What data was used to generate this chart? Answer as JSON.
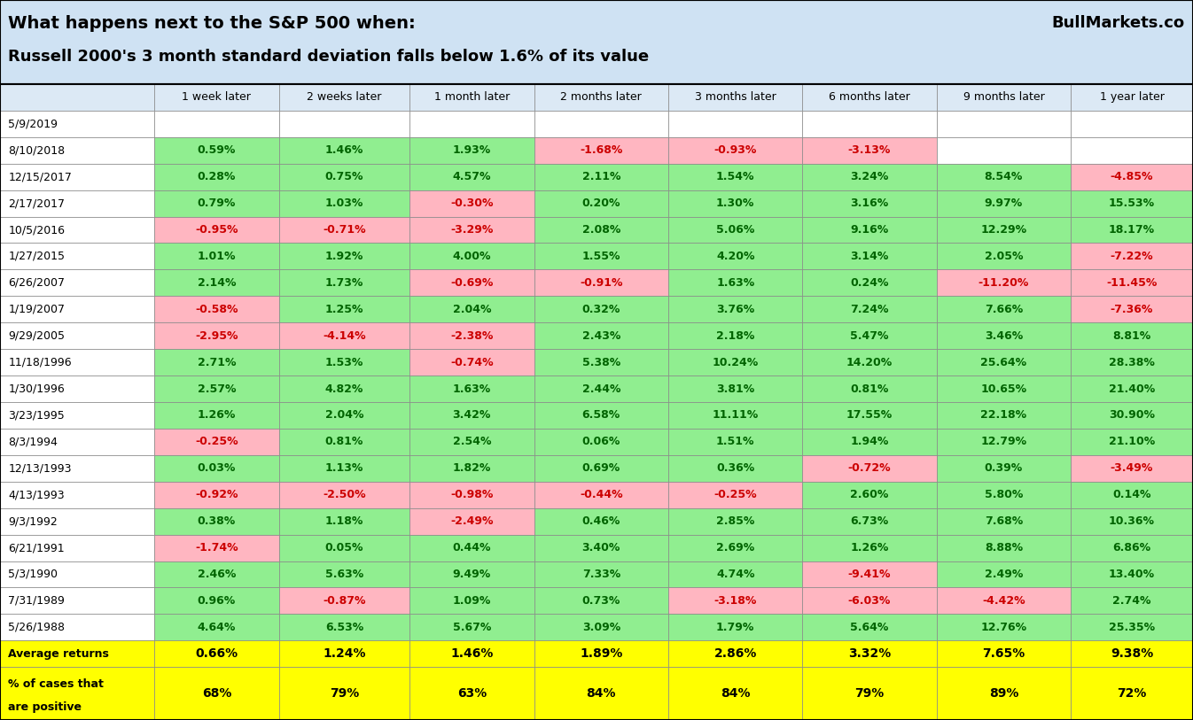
{
  "title_line1": "What happens next to the S&P 500 when:",
  "title_line2": "Russell 2000's 3 month standard deviation falls below 1.6% of its value",
  "watermark": "BullMarkets.co",
  "col_headers": [
    "1 week later",
    "2 weeks later",
    "1 month later",
    "2 months later",
    "3 months later",
    "6 months later",
    "9 months later",
    "1 year later"
  ],
  "rows": [
    {
      "date": "5/9/2019",
      "values": [
        null,
        null,
        null,
        null,
        null,
        null,
        null,
        null
      ]
    },
    {
      "date": "8/10/2018",
      "values": [
        0.59,
        1.46,
        1.93,
        -1.68,
        -0.93,
        -3.13,
        null,
        null
      ]
    },
    {
      "date": "12/15/2017",
      "values": [
        0.28,
        0.75,
        4.57,
        2.11,
        1.54,
        3.24,
        8.54,
        -4.85
      ]
    },
    {
      "date": "2/17/2017",
      "values": [
        0.79,
        1.03,
        -0.3,
        0.2,
        1.3,
        3.16,
        9.97,
        15.53
      ]
    },
    {
      "date": "10/5/2016",
      "values": [
        -0.95,
        -0.71,
        -3.29,
        2.08,
        5.06,
        9.16,
        12.29,
        18.17
      ]
    },
    {
      "date": "1/27/2015",
      "values": [
        1.01,
        1.92,
        4.0,
        1.55,
        4.2,
        3.14,
        2.05,
        -7.22
      ]
    },
    {
      "date": "6/26/2007",
      "values": [
        2.14,
        1.73,
        -0.69,
        -0.91,
        1.63,
        0.24,
        -11.2,
        -11.45
      ]
    },
    {
      "date": "1/19/2007",
      "values": [
        -0.58,
        1.25,
        2.04,
        0.32,
        3.76,
        7.24,
        7.66,
        -7.36
      ]
    },
    {
      "date": "9/29/2005",
      "values": [
        -2.95,
        -4.14,
        -2.38,
        2.43,
        2.18,
        5.47,
        3.46,
        8.81
      ]
    },
    {
      "date": "11/18/1996",
      "values": [
        2.71,
        1.53,
        -0.74,
        5.38,
        10.24,
        14.2,
        25.64,
        28.38
      ]
    },
    {
      "date": "1/30/1996",
      "values": [
        2.57,
        4.82,
        1.63,
        2.44,
        3.81,
        0.81,
        10.65,
        21.4
      ]
    },
    {
      "date": "3/23/1995",
      "values": [
        1.26,
        2.04,
        3.42,
        6.58,
        11.11,
        17.55,
        22.18,
        30.9
      ]
    },
    {
      "date": "8/3/1994",
      "values": [
        -0.25,
        0.81,
        2.54,
        0.06,
        1.51,
        1.94,
        12.79,
        21.1
      ]
    },
    {
      "date": "12/13/1993",
      "values": [
        0.03,
        1.13,
        1.82,
        0.69,
        0.36,
        -0.72,
        0.39,
        -3.49
      ]
    },
    {
      "date": "4/13/1993",
      "values": [
        -0.92,
        -2.5,
        -0.98,
        -0.44,
        -0.25,
        2.6,
        5.8,
        0.14
      ]
    },
    {
      "date": "9/3/1992",
      "values": [
        0.38,
        1.18,
        -2.49,
        0.46,
        2.85,
        6.73,
        7.68,
        10.36
      ]
    },
    {
      "date": "6/21/1991",
      "values": [
        -1.74,
        0.05,
        0.44,
        3.4,
        2.69,
        1.26,
        8.88,
        6.86
      ]
    },
    {
      "date": "5/3/1990",
      "values": [
        2.46,
        5.63,
        9.49,
        7.33,
        4.74,
        -9.41,
        2.49,
        13.4
      ]
    },
    {
      "date": "7/31/1989",
      "values": [
        0.96,
        -0.87,
        1.09,
        0.73,
        -3.18,
        -6.03,
        -4.42,
        2.74
      ]
    },
    {
      "date": "5/26/1988",
      "values": [
        4.64,
        6.53,
        5.67,
        3.09,
        1.79,
        5.64,
        12.76,
        25.35
      ]
    }
  ],
  "avg_returns": [
    "0.66%",
    "1.24%",
    "1.46%",
    "1.89%",
    "2.86%",
    "3.32%",
    "7.65%",
    "9.38%"
  ],
  "pct_positive": [
    "68%",
    "79%",
    "63%",
    "84%",
    "84%",
    "79%",
    "89%",
    "72%"
  ],
  "avg_label_line1": "Average returns",
  "pct_label_line1": "% of cases that",
  "pct_label_line2": "are positive",
  "header_bg": "#dce9f5",
  "title_bg": "#cfe2f3",
  "green_bg": "#90EE90",
  "red_bg": "#FFB6C1",
  "yellow_bg": "#FFFF00",
  "white_bg": "#FFFFFF",
  "border_color": "#888888",
  "outer_border_color": "#000000",
  "text_color_dark": "#000000",
  "green_text": "#006400",
  "red_text": "#CC0000",
  "col_widths_raw": [
    1.3,
    1.05,
    1.1,
    1.05,
    1.13,
    1.13,
    1.13,
    1.13,
    1.03
  ],
  "title_fontsize": 14,
  "subtitle_fontsize": 13,
  "watermark_fontsize": 13,
  "header_fontsize": 9,
  "data_fontsize": 9,
  "summary_fontsize": 10
}
